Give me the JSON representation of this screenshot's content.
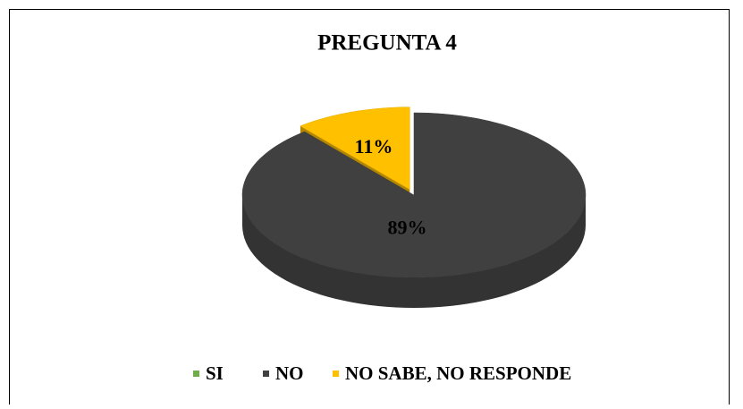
{
  "chart_data": {
    "type": "pie",
    "title": "PREGUNTA  4",
    "categories": [
      "SI",
      "NO",
      "NO SABE, NO RESPONDE"
    ],
    "values": [
      0,
      89,
      11
    ],
    "value_labels": [
      null,
      "89%",
      "11%"
    ],
    "colors": [
      "#70ad47",
      "#404040",
      "#ffc000"
    ],
    "legend": "bottom"
  }
}
